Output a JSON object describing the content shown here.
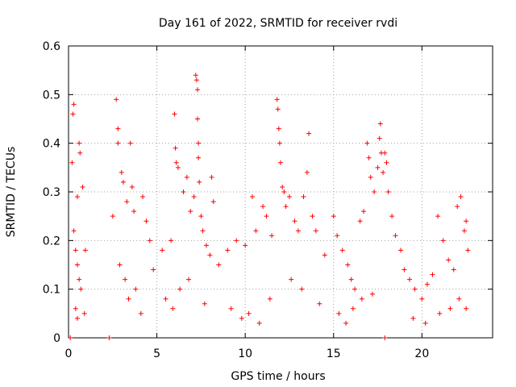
{
  "chart_data": {
    "type": "scatter",
    "title": "Day 161 of 2022, SRMTID for receiver rvdi",
    "xlabel": "GPS time / hours",
    "ylabel": "SRMTID / TECUs",
    "xlim": [
      0,
      24
    ],
    "ylim": [
      0,
      0.6
    ],
    "xticks": [
      0,
      5,
      10,
      15,
      20
    ],
    "yticks": [
      0,
      0.1,
      0.2,
      0.3,
      0.4,
      0.5,
      0.6
    ],
    "grid": true,
    "marker": "+",
    "color": "#ff0000",
    "series": [
      {
        "name": "SRMTID",
        "points": [
          [
            0.2,
            0.36
          ],
          [
            0.25,
            0.46
          ],
          [
            0.3,
            0.48
          ],
          [
            0.6,
            0.4
          ],
          [
            0.65,
            0.38
          ],
          [
            0.5,
            0.29
          ],
          [
            0.8,
            0.31
          ],
          [
            0.3,
            0.22
          ],
          [
            0.4,
            0.18
          ],
          [
            0.5,
            0.15
          ],
          [
            0.6,
            0.12
          ],
          [
            0.7,
            0.1
          ],
          [
            0.4,
            0.06
          ],
          [
            0.5,
            0.04
          ],
          [
            0.9,
            0.05
          ],
          [
            0.95,
            0.18
          ],
          [
            0.1,
            0.0
          ],
          [
            2.3,
            0.0
          ],
          [
            17.9,
            0.0
          ],
          [
            2.5,
            0.25
          ],
          [
            2.7,
            0.49
          ],
          [
            2.8,
            0.43
          ],
          [
            2.8,
            0.4
          ],
          [
            3.0,
            0.34
          ],
          [
            3.1,
            0.32
          ],
          [
            3.5,
            0.4
          ],
          [
            3.3,
            0.28
          ],
          [
            3.6,
            0.31
          ],
          [
            3.7,
            0.26
          ],
          [
            2.9,
            0.15
          ],
          [
            3.2,
            0.12
          ],
          [
            3.4,
            0.08
          ],
          [
            3.8,
            0.1
          ],
          [
            4.2,
            0.29
          ],
          [
            4.4,
            0.24
          ],
          [
            4.6,
            0.2
          ],
          [
            4.8,
            0.14
          ],
          [
            4.1,
            0.05
          ],
          [
            5.3,
            0.18
          ],
          [
            5.8,
            0.2
          ],
          [
            6.0,
            0.46
          ],
          [
            6.05,
            0.39
          ],
          [
            6.1,
            0.36
          ],
          [
            6.2,
            0.35
          ],
          [
            6.5,
            0.3
          ],
          [
            6.7,
            0.33
          ],
          [
            6.9,
            0.26
          ],
          [
            7.1,
            0.29
          ],
          [
            7.2,
            0.54
          ],
          [
            7.25,
            0.53
          ],
          [
            7.3,
            0.51
          ],
          [
            7.3,
            0.45
          ],
          [
            7.35,
            0.4
          ],
          [
            7.35,
            0.37
          ],
          [
            7.4,
            0.32
          ],
          [
            7.5,
            0.25
          ],
          [
            7.6,
            0.22
          ],
          [
            7.8,
            0.19
          ],
          [
            8.1,
            0.33
          ],
          [
            8.2,
            0.28
          ],
          [
            8.0,
            0.17
          ],
          [
            6.3,
            0.1
          ],
          [
            6.8,
            0.12
          ],
          [
            5.5,
            0.08
          ],
          [
            5.9,
            0.06
          ],
          [
            7.7,
            0.07
          ],
          [
            8.5,
            0.15
          ],
          [
            9.0,
            0.18
          ],
          [
            9.5,
            0.2
          ],
          [
            10.0,
            0.19
          ],
          [
            10.4,
            0.29
          ],
          [
            10.6,
            0.22
          ],
          [
            11.0,
            0.27
          ],
          [
            11.2,
            0.25
          ],
          [
            11.5,
            0.21
          ],
          [
            11.8,
            0.49
          ],
          [
            11.85,
            0.47
          ],
          [
            11.9,
            0.43
          ],
          [
            11.95,
            0.4
          ],
          [
            12.0,
            0.36
          ],
          [
            12.1,
            0.31
          ],
          [
            12.2,
            0.3
          ],
          [
            12.3,
            0.27
          ],
          [
            12.5,
            0.29
          ],
          [
            12.8,
            0.24
          ],
          [
            13.0,
            0.22
          ],
          [
            13.3,
            0.29
          ],
          [
            13.5,
            0.34
          ],
          [
            13.6,
            0.42
          ],
          [
            13.8,
            0.25
          ],
          [
            14.0,
            0.22
          ],
          [
            14.5,
            0.17
          ],
          [
            9.2,
            0.06
          ],
          [
            9.8,
            0.04
          ],
          [
            10.2,
            0.05
          ],
          [
            10.8,
            0.03
          ],
          [
            11.4,
            0.08
          ],
          [
            12.6,
            0.12
          ],
          [
            13.2,
            0.1
          ],
          [
            14.2,
            0.07
          ],
          [
            15.0,
            0.25
          ],
          [
            15.2,
            0.21
          ],
          [
            15.5,
            0.18
          ],
          [
            15.8,
            0.15
          ],
          [
            16.0,
            0.12
          ],
          [
            16.2,
            0.1
          ],
          [
            16.5,
            0.24
          ],
          [
            16.7,
            0.26
          ],
          [
            16.9,
            0.4
          ],
          [
            17.0,
            0.37
          ],
          [
            17.1,
            0.33
          ],
          [
            17.3,
            0.3
          ],
          [
            17.5,
            0.35
          ],
          [
            17.6,
            0.41
          ],
          [
            17.65,
            0.44
          ],
          [
            17.7,
            0.38
          ],
          [
            17.8,
            0.34
          ],
          [
            17.9,
            0.38
          ],
          [
            18.0,
            0.36
          ],
          [
            18.1,
            0.3
          ],
          [
            18.3,
            0.25
          ],
          [
            18.5,
            0.21
          ],
          [
            15.3,
            0.05
          ],
          [
            15.7,
            0.03
          ],
          [
            16.1,
            0.06
          ],
          [
            16.6,
            0.08
          ],
          [
            17.2,
            0.09
          ],
          [
            18.8,
            0.18
          ],
          [
            19.0,
            0.14
          ],
          [
            19.3,
            0.12
          ],
          [
            19.6,
            0.1
          ],
          [
            20.0,
            0.08
          ],
          [
            20.3,
            0.11
          ],
          [
            20.6,
            0.13
          ],
          [
            20.9,
            0.25
          ],
          [
            21.2,
            0.2
          ],
          [
            21.5,
            0.16
          ],
          [
            21.8,
            0.14
          ],
          [
            22.0,
            0.27
          ],
          [
            22.2,
            0.29
          ],
          [
            22.4,
            0.22
          ],
          [
            22.5,
            0.24
          ],
          [
            22.6,
            0.18
          ],
          [
            19.5,
            0.04
          ],
          [
            20.2,
            0.03
          ],
          [
            21.0,
            0.05
          ],
          [
            21.6,
            0.06
          ],
          [
            22.1,
            0.08
          ],
          [
            22.5,
            0.06
          ]
        ]
      }
    ]
  }
}
